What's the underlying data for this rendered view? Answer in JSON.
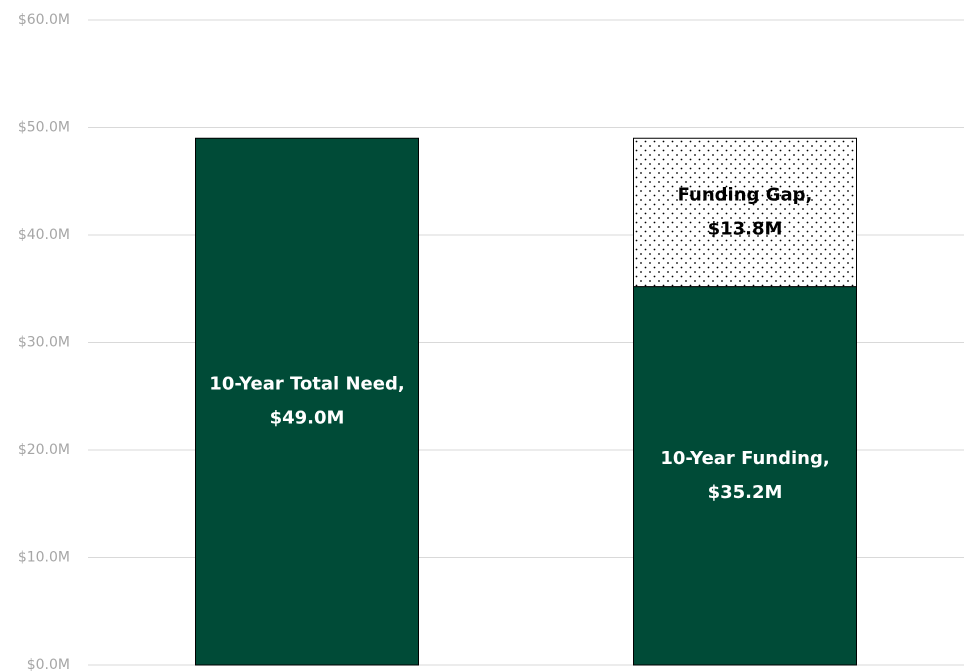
{
  "chart_data": {
    "type": "bar",
    "stacked": true,
    "categories": [
      null,
      null
    ],
    "series": [
      {
        "color": "#004b37",
        "values": [
          49000000,
          null
        ],
        "value_labels": [
          "10-Year Total Need, $49.0M",
          null
        ]
      },
      {
        "color": "#004b37",
        "values": [
          null,
          35200000
        ],
        "value_labels": [
          null,
          "10-Year Funding, $35.2M"
        ]
      },
      {
        "color": "#ffffff",
        "pattern": "dots",
        "values": [
          null,
          13800000
        ],
        "value_labels": [
          null,
          "Funding Gap, $13.8M"
        ]
      }
    ],
    "ylim": [
      0,
      60000000
    ],
    "yticks": [
      {
        "value": 0,
        "label": "$0.0M"
      },
      {
        "value": 10000000,
        "label": "$10.0M"
      },
      {
        "value": 20000000,
        "label": "$20.0M"
      },
      {
        "value": 30000000,
        "label": "$30.0M"
      },
      {
        "value": 40000000,
        "label": "$40.0M"
      },
      {
        "value": 50000000,
        "label": "$50.0M"
      },
      {
        "value": 60000000,
        "label": "$60.0M"
      }
    ],
    "grid": true
  }
}
